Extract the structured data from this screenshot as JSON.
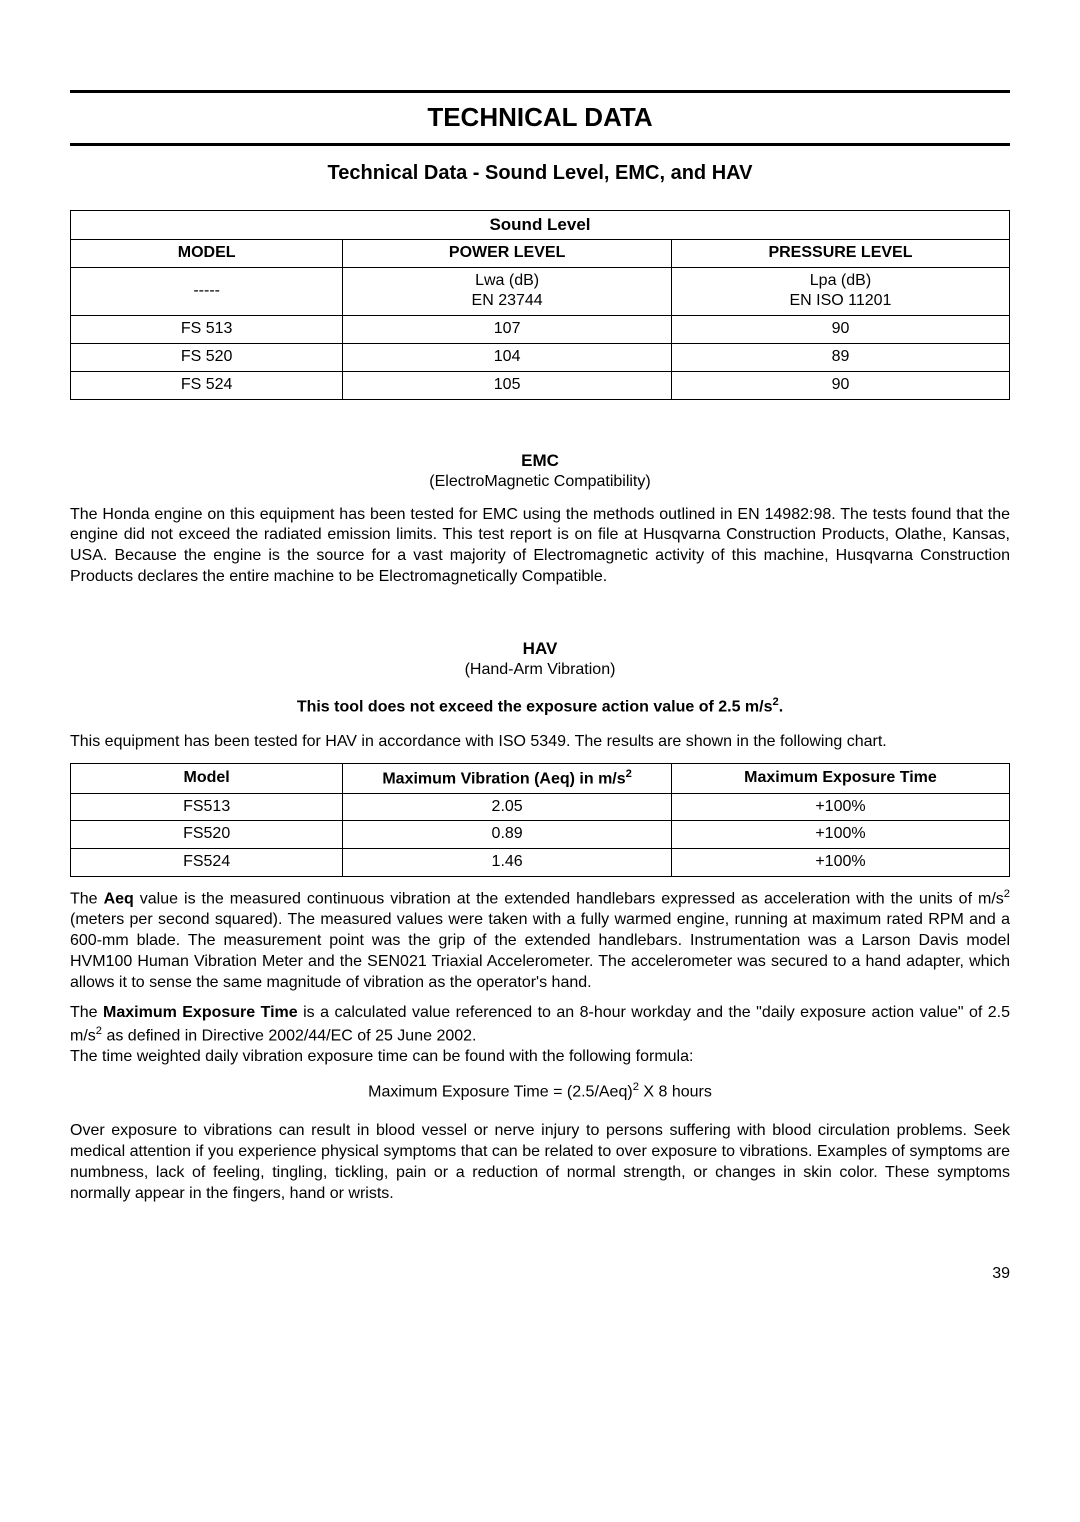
{
  "titles": {
    "main": "TECHNICAL DATA",
    "sub": "Technical Data - Sound Level, EMC, and HAV"
  },
  "sound_table": {
    "caption": "Sound Level",
    "headers": {
      "model": "MODEL",
      "power": "POWER LEVEL",
      "pressure": "PRESSURE LEVEL"
    },
    "unit_row": {
      "model": "-----",
      "power_line1": "Lwa (dB)",
      "power_line2": "EN 23744",
      "pressure_line1": "Lpa (dB)",
      "pressure_line2": "EN ISO 11201"
    },
    "rows": [
      {
        "model": "FS 513",
        "power": "107",
        "pressure": "90"
      },
      {
        "model": "FS 520",
        "power": "104",
        "pressure": "89"
      },
      {
        "model": "FS 524",
        "power": "105",
        "pressure": "90"
      }
    ]
  },
  "emc": {
    "head": "EMC",
    "sub": "(ElectroMagnetic Compatibility)",
    "para": "The Honda engine on this equipment has been tested for EMC using the methods outlined in EN 14982:98.  The tests found that the engine did not exceed the radiated emission limits.  This test report is on file at Husqvarna Construction Products, Olathe, Kansas, USA.  Because the engine is the source for a vast majority of Electromagnetic activity of this machine, Husqvarna Construction Products declares the entire machine to be Electromagnetically Compatible."
  },
  "hav": {
    "head": "HAV",
    "sub": "(Hand-Arm Vibration)",
    "action_pre": "This tool does not exceed the exposure action value of 2.5 m/s",
    "action_post": ".",
    "intro": "This equipment has been tested for HAV in accordance with ISO 5349.  The results are shown in the following chart.",
    "table": {
      "headers": {
        "model": "Model",
        "vib_pre": "Maximum Vibration (Aeq) in m/s",
        "vib_sup": "2",
        "time": "Maximum Exposure Time"
      },
      "rows": [
        {
          "model": "FS513",
          "vib": "2.05",
          "time": "+100%"
        },
        {
          "model": "FS520",
          "vib": "0.89",
          "time": "+100%"
        },
        {
          "model": "FS524",
          "vib": "1.46",
          "time": "+100%"
        }
      ]
    },
    "aeq_pre": "The ",
    "aeq_bold": "Aeq",
    "aeq_p1": " value is the measured continuous vibration at the extended handlebars expressed as acceleration with the units of m/s",
    "aeq_sup": "2",
    "aeq_p2": " (meters per second squared).  The measured values were taken with a fully warmed engine, running at maximum rated RPM and a 600-mm blade.  The measurement point was the grip of the extended handlebars.  Instrumentation was a Larson Davis model HVM100 Human Vibration Meter and the SEN021 Triaxial Accelerometer.  The accelerometer was secured to a hand adapter, which allows it to sense the same magnitude of vibration as the operator's hand.",
    "max_pre": "The ",
    "max_bold": "Maximum Exposure Time",
    "max_p1": " is a calculated value referenced to an 8-hour workday and the \"daily exposure action value\" of 2.5 m/s",
    "max_sup": "2",
    "max_p2": " as defined in Directive 2002/44/EC of 25 June 2002.",
    "max_line2": "The time weighted daily vibration exposure time can be found with the following formula:",
    "formula_pre": "Maximum Exposure Time = (2.5/Aeq)",
    "formula_sup": "2",
    "formula_post": " X 8 hours",
    "warning": "Over exposure to vibrations can result in blood vessel or nerve injury to persons suffering with blood circulation problems.  Seek medical attention if you experience physical symptoms that can be related to over exposure to vibrations.  Examples of symptoms are numbness, lack of feeling, tingling, tickling, pain or a reduction of normal strength, or changes in skin color.  These symptoms normally appear in the fingers, hand or wrists."
  },
  "page_number": "39"
}
